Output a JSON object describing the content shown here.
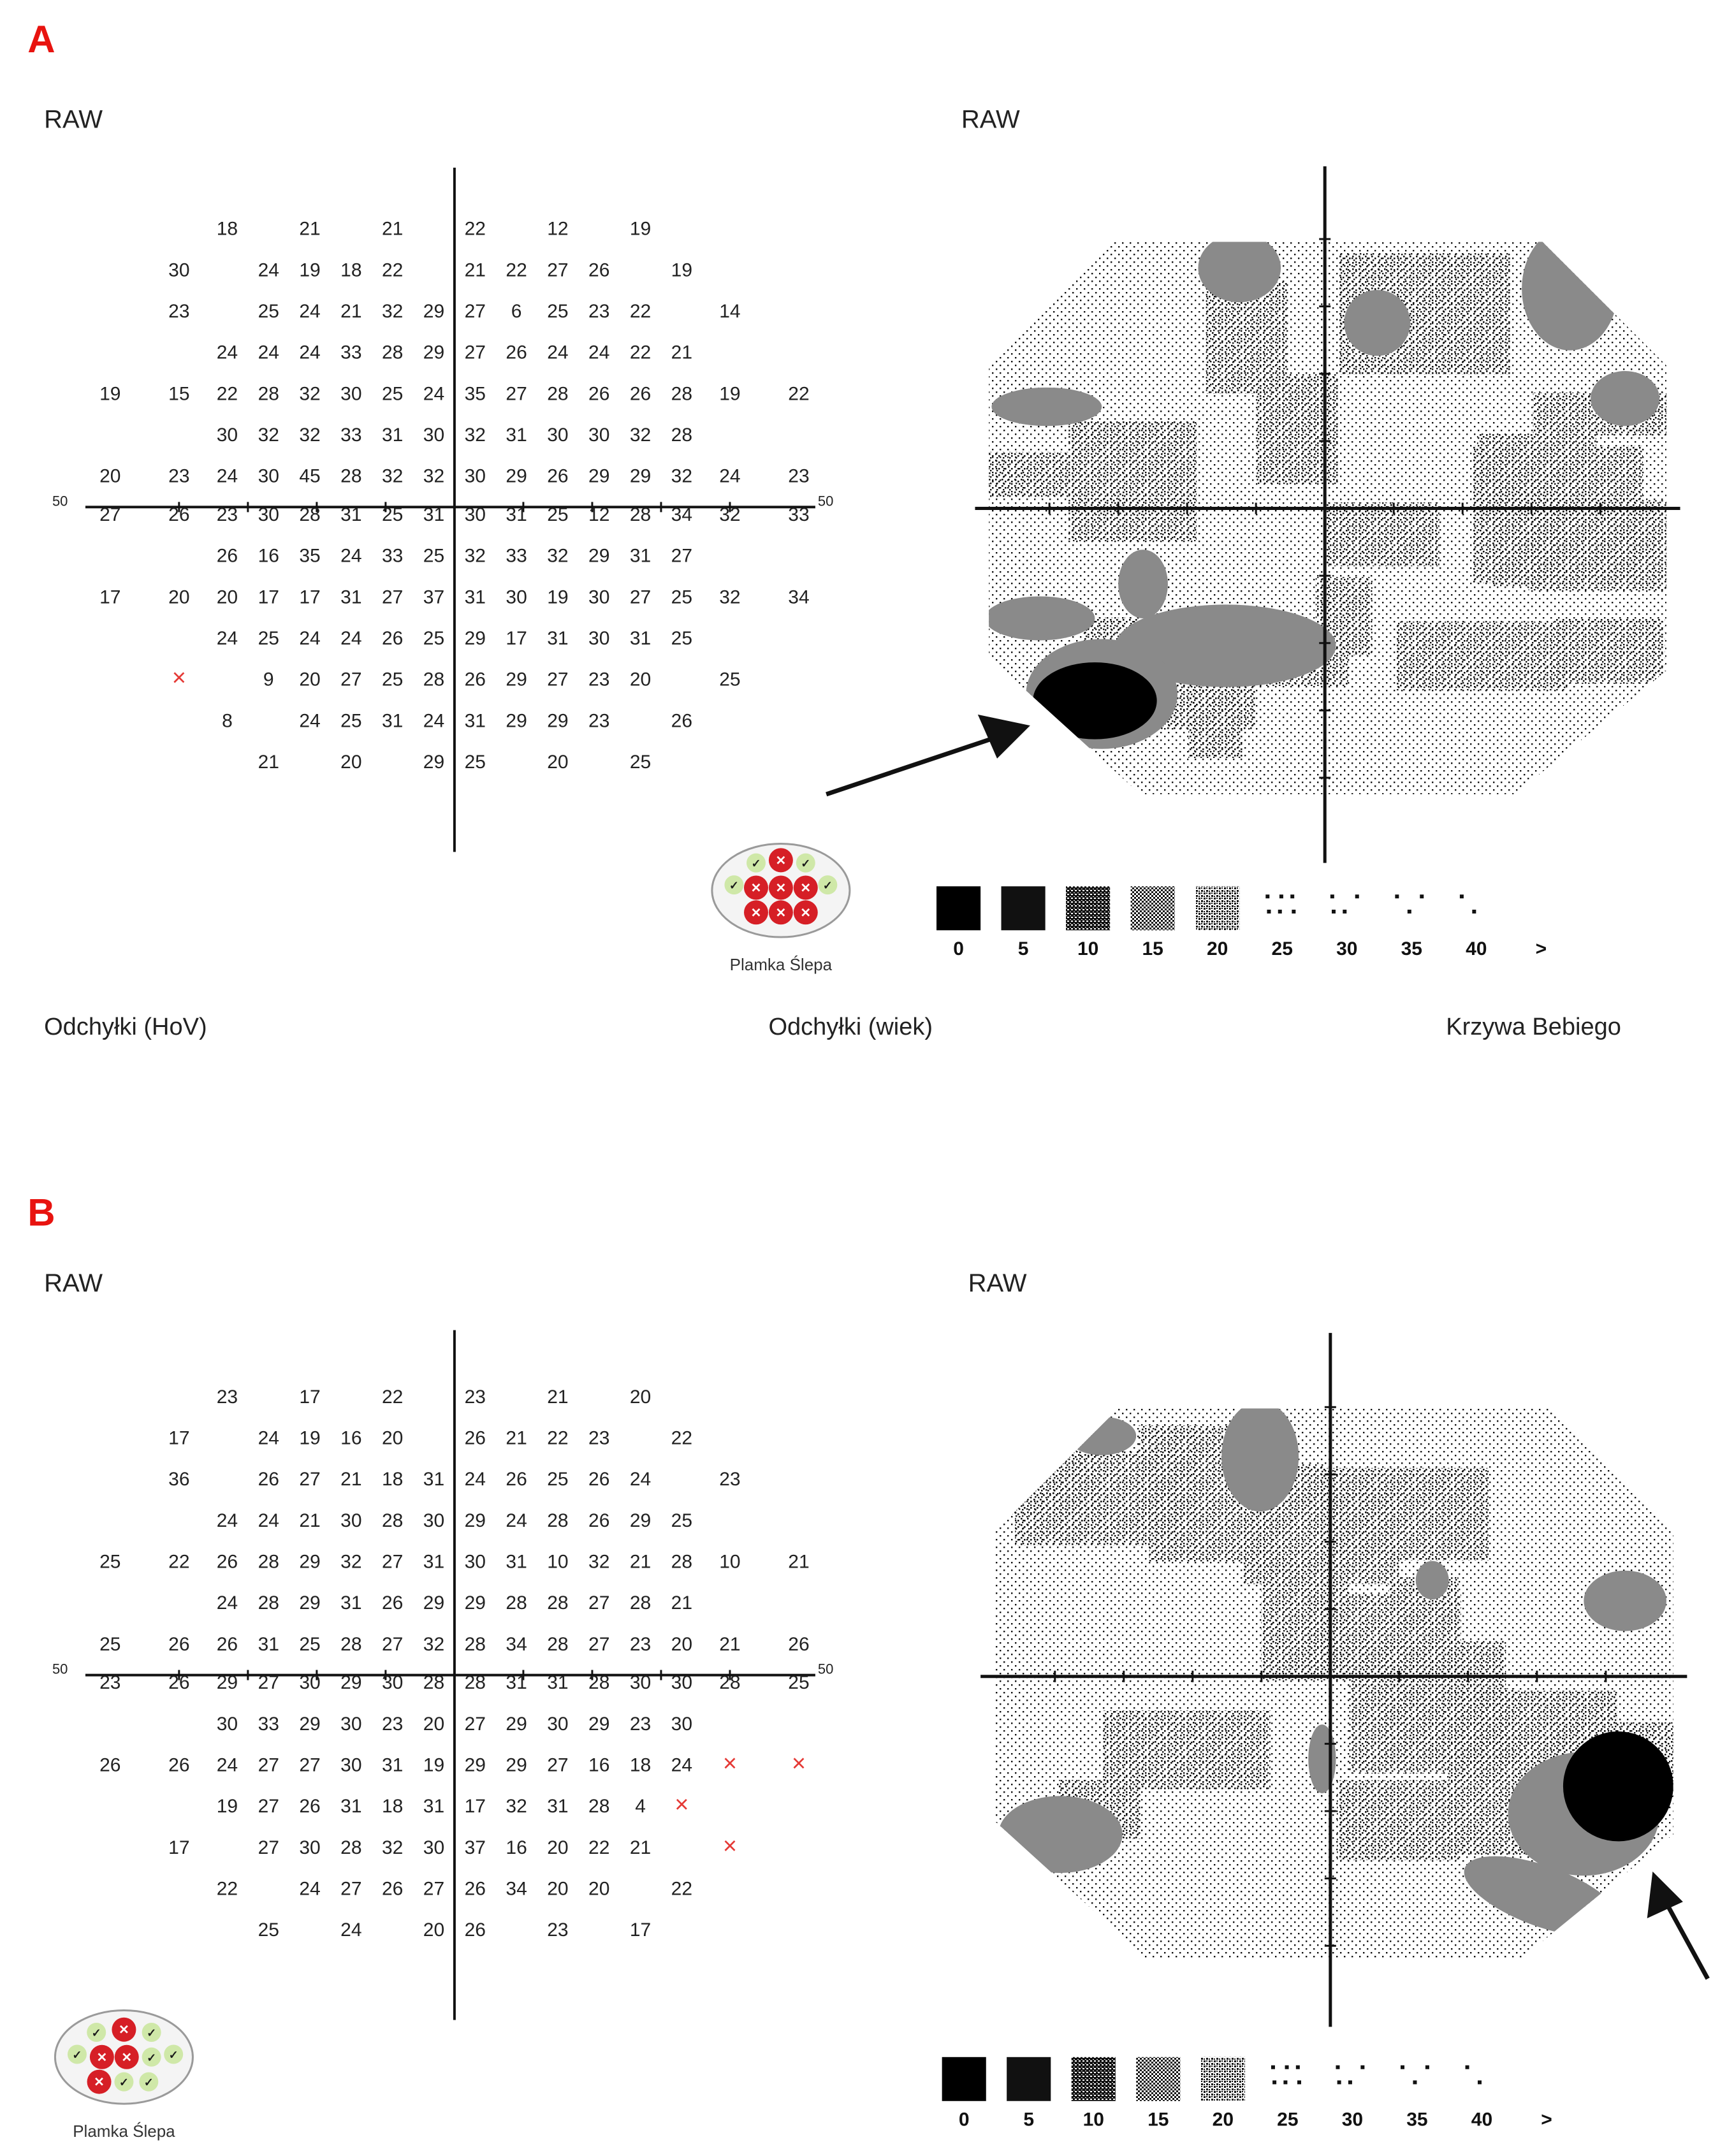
{
  "panels": [
    {
      "id": "A",
      "letter": "A",
      "left_header": "RAW",
      "right_header": "RAW",
      "axis_label_left": "50",
      "axis_label_right": "50",
      "rows": [
        {
          "left": [
            "",
            "",
            "18",
            "",
            "21",
            "",
            "21"
          ],
          "right": [
            "22",
            "",
            "12",
            "",
            "19",
            "",
            ""
          ]
        },
        {
          "left": [
            "",
            "30",
            "",
            "24",
            "19",
            "18",
            "22"
          ],
          "right": [
            "21",
            "22",
            "27",
            "26",
            "",
            "19",
            ""
          ]
        },
        {
          "left": [
            "",
            "23",
            "",
            "25",
            "24",
            "21",
            "32",
            "29"
          ],
          "right": [
            "27",
            "6",
            "25",
            "23",
            "22",
            "",
            "14"
          ]
        },
        {
          "left": [
            "",
            "",
            "24",
            "24",
            "24",
            "33",
            "28",
            "29"
          ],
          "right": [
            "27",
            "26",
            "24",
            "24",
            "22",
            "21",
            ""
          ]
        },
        {
          "left": [
            "19",
            "15",
            "22",
            "28",
            "32",
            "30",
            "25",
            "24"
          ],
          "right": [
            "35",
            "27",
            "28",
            "26",
            "26",
            "28",
            "19",
            "22"
          ]
        },
        {
          "left": [
            "",
            "",
            "30",
            "32",
            "32",
            "33",
            "31",
            "30"
          ],
          "right": [
            "32",
            "31",
            "30",
            "30",
            "32",
            "28",
            "",
            ""
          ]
        },
        {
          "left": [
            "20",
            "23",
            "24",
            "30",
            "45",
            "28",
            "32",
            "32"
          ],
          "right": [
            "30",
            "29",
            "26",
            "29",
            "29",
            "32",
            "24",
            "23"
          ]
        },
        {
          "left": [
            "27",
            "26",
            "23",
            "30",
            "28",
            "31",
            "25",
            "31"
          ],
          "right": [
            "30",
            "31",
            "25",
            "12",
            "28",
            "34",
            "32",
            "33"
          ]
        },
        {
          "left": [
            "",
            "",
            "26",
            "16",
            "35",
            "24",
            "33",
            "25"
          ],
          "right": [
            "32",
            "33",
            "32",
            "29",
            "31",
            "27",
            "",
            ""
          ]
        },
        {
          "left": [
            "17",
            "20",
            "20",
            "17",
            "17",
            "31",
            "27",
            "37"
          ],
          "right": [
            "31",
            "30",
            "19",
            "30",
            "27",
            "25",
            "32",
            "34"
          ]
        },
        {
          "left": [
            "",
            "",
            "24",
            "25",
            "24",
            "24",
            "26",
            "25"
          ],
          "right": [
            "29",
            "17",
            "31",
            "30",
            "31",
            "25",
            "",
            ""
          ]
        },
        {
          "left": [
            "",
            "×",
            "",
            "9",
            "20",
            "27",
            "25",
            "28"
          ],
          "right": [
            "26",
            "29",
            "27",
            "23",
            "20",
            "",
            "25",
            ""
          ]
        },
        {
          "left": [
            "",
            "",
            "8",
            "",
            "24",
            "25",
            "31",
            "24"
          ],
          "right": [
            "31",
            "29",
            "29",
            "23",
            "",
            "26",
            "",
            ""
          ]
        },
        {
          "left": [
            "",
            "",
            "",
            "21",
            "",
            "20",
            "",
            "29"
          ],
          "right": [
            "25",
            "",
            "20",
            "",
            "25",
            "",
            "",
            ""
          ]
        }
      ],
      "blindspot_label": "Plamka Ślepa",
      "legend_values": [
        "0",
        "5",
        "10",
        "15",
        "20",
        "25",
        "30",
        "35",
        "40",
        ">"
      ],
      "footer": {
        "left": "Odchyłki (HoV)",
        "center": "Odchyłki (wiek)",
        "right": "Krzywa Bebiego"
      }
    },
    {
      "id": "B",
      "letter": "B",
      "left_header": "RAW",
      "right_header": "RAW",
      "axis_label_left": "50",
      "axis_label_right": "50",
      "rows": [
        {
          "left": [
            "",
            "",
            "23",
            "",
            "17",
            "",
            "22"
          ],
          "right": [
            "23",
            "",
            "21",
            "",
            "20",
            "",
            ""
          ]
        },
        {
          "left": [
            "",
            "17",
            "",
            "24",
            "19",
            "16",
            "20"
          ],
          "right": [
            "26",
            "21",
            "22",
            "23",
            "",
            "22",
            ""
          ]
        },
        {
          "left": [
            "",
            "36",
            "",
            "26",
            "27",
            "21",
            "18",
            "31"
          ],
          "right": [
            "24",
            "26",
            "25",
            "26",
            "24",
            "",
            "23"
          ]
        },
        {
          "left": [
            "",
            "",
            "24",
            "24",
            "21",
            "30",
            "28",
            "30"
          ],
          "right": [
            "29",
            "24",
            "28",
            "26",
            "29",
            "25",
            ""
          ]
        },
        {
          "left": [
            "25",
            "22",
            "26",
            "28",
            "29",
            "32",
            "27",
            "31"
          ],
          "right": [
            "30",
            "31",
            "10",
            "32",
            "21",
            "28",
            "10",
            "21"
          ]
        },
        {
          "left": [
            "",
            "",
            "24",
            "28",
            "29",
            "31",
            "26",
            "29"
          ],
          "right": [
            "29",
            "28",
            "28",
            "27",
            "28",
            "21",
            "",
            ""
          ]
        },
        {
          "left": [
            "25",
            "26",
            "26",
            "31",
            "25",
            "28",
            "27",
            "32"
          ],
          "right": [
            "28",
            "34",
            "28",
            "27",
            "23",
            "20",
            "21",
            "26"
          ]
        },
        {
          "left": [
            "23",
            "26",
            "29",
            "27",
            "30",
            "29",
            "30",
            "28"
          ],
          "right": [
            "28",
            "31",
            "31",
            "28",
            "30",
            "30",
            "28",
            "25"
          ]
        },
        {
          "left": [
            "",
            "",
            "30",
            "33",
            "29",
            "30",
            "23",
            "20"
          ],
          "right": [
            "27",
            "29",
            "30",
            "29",
            "23",
            "30",
            "",
            ""
          ]
        },
        {
          "left": [
            "26",
            "26",
            "24",
            "27",
            "27",
            "30",
            "31",
            "19"
          ],
          "right": [
            "29",
            "29",
            "27",
            "16",
            "18",
            "24",
            "×",
            "×"
          ]
        },
        {
          "left": [
            "",
            "",
            "19",
            "27",
            "26",
            "31",
            "18",
            "31"
          ],
          "right": [
            "17",
            "32",
            "31",
            "28",
            "4",
            "×",
            "",
            ""
          ]
        },
        {
          "left": [
            "",
            "17",
            "",
            "27",
            "30",
            "28",
            "32",
            "30"
          ],
          "right": [
            "37",
            "16",
            "20",
            "22",
            "21",
            "",
            "×",
            ""
          ]
        },
        {
          "left": [
            "",
            "",
            "22",
            "",
            "24",
            "27",
            "26",
            "27"
          ],
          "right": [
            "26",
            "34",
            "20",
            "20",
            "",
            "22",
            "",
            ""
          ]
        },
        {
          "left": [
            "",
            "",
            "",
            "25",
            "",
            "24",
            "",
            "20"
          ],
          "right": [
            "26",
            "",
            "23",
            "",
            "17",
            "",
            "",
            ""
          ]
        }
      ],
      "blindspot_label": "Plamka Ślepa",
      "legend_values": [
        "0",
        "5",
        "10",
        "15",
        "20",
        "25",
        "30",
        "35",
        "40",
        ">"
      ]
    }
  ],
  "colors": {
    "panel_letter": "#e8130f",
    "marker_x": "#e53935",
    "blindspot_red": "#d61f26",
    "blindspot_green": "#cfe8a8",
    "grey_defect": "#8a8a8a",
    "black_defect": "#000000"
  }
}
